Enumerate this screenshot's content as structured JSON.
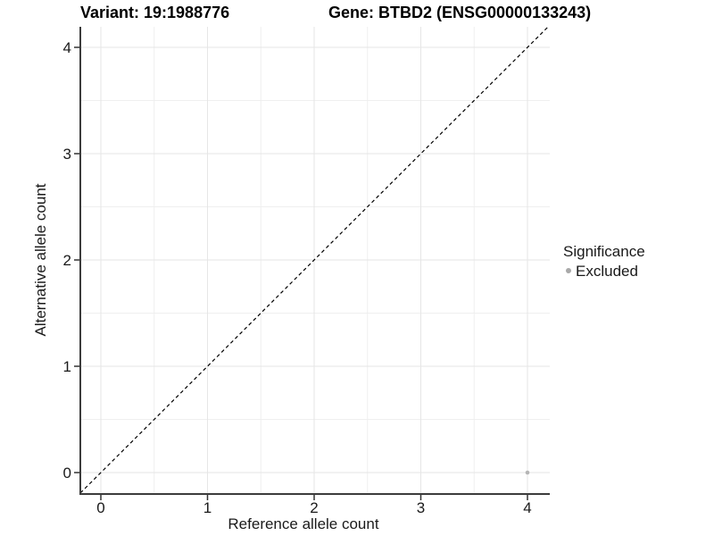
{
  "header": {
    "title_left": "Variant: 19:1988776",
    "title_right": "Gene: BTBD2 (ENSG00000133243)"
  },
  "chart_data": {
    "type": "scatter",
    "title": "Variant: 19:1988776 | Gene: BTBD2 (ENSG00000133243)",
    "xlabel": "Reference allele count",
    "ylabel": "Alternative allele count",
    "xlim": [
      -0.2,
      4.2
    ],
    "ylim": [
      -0.2,
      4.2
    ],
    "x_ticks": [
      0,
      1,
      2,
      3,
      4
    ],
    "y_ticks": [
      0,
      1,
      2,
      3,
      4
    ],
    "minor_ticks": [
      0.5,
      1.5,
      2.5,
      3.5
    ],
    "grid": true,
    "series": [
      {
        "name": "Excluded",
        "points": [
          {
            "x": 4,
            "y": 0
          }
        ]
      }
    ],
    "reference_line": {
      "kind": "identity",
      "slope": 1,
      "intercept": 0,
      "style": "dashed"
    },
    "legend": {
      "title": "Significance",
      "position": "right",
      "entries": [
        {
          "label": "Excluded",
          "color": "#aeaeae"
        }
      ]
    },
    "colors": {
      "point": "#b5b5b5",
      "grid_major": "#e6e6e6",
      "grid_minor": "#efefef",
      "axis_line": "#3c3c3c",
      "tick_mark": "#333333",
      "dashed_line": "#000000",
      "text": "#1a1a1a"
    }
  }
}
